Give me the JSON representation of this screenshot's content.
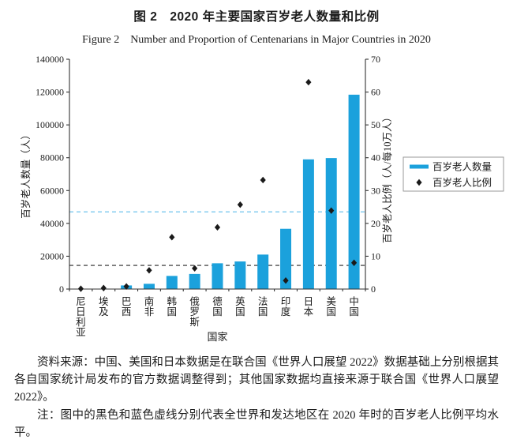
{
  "header": {
    "title_zh": "图 2　2020 年主要国家百岁老人数量和比例",
    "title_en": "Figure 2　Number and Proportion of Centenarians in Major Countries in 2020"
  },
  "chart_data": {
    "type": "bar",
    "title": "2020 年主要国家百岁老人数量和比例",
    "categories": [
      "尼日利亚",
      "埃及",
      "巴西",
      "南非",
      "韩国",
      "俄罗斯",
      "德国",
      "英国",
      "法国",
      "印度",
      "日本",
      "美国",
      "中国"
    ],
    "series": [
      {
        "name": "百岁老人数量",
        "type": "bar",
        "axis": "left",
        "color": "#1ba1dc",
        "values": [
          80,
          250,
          2200,
          3200,
          8000,
          9200,
          15700,
          16800,
          21000,
          36700,
          79000,
          79800,
          118400
        ]
      },
      {
        "name": "百岁老人比例",
        "type": "scatter",
        "marker": "diamond",
        "axis": "right",
        "color": "#1a1a1a",
        "values": [
          0.1,
          0.3,
          0.8,
          5.7,
          15.8,
          6.3,
          18.8,
          25.7,
          33.2,
          2.6,
          63,
          23.9,
          8
        ]
      }
    ],
    "reference_lines": [
      {
        "name": "全世界百岁老人比例平均水平",
        "axis": "right",
        "value": 7.2,
        "color": "#4d4d4d",
        "style": "dashed"
      },
      {
        "name": "发达地区百岁老人比例平均水平",
        "axis": "right",
        "value": 23.5,
        "color": "#7ac8ee",
        "style": "dashed"
      }
    ],
    "axes": {
      "left": {
        "label": "百岁老人数量（人）",
        "min": 0,
        "max": 140000,
        "step": 20000
      },
      "right": {
        "label": "百岁老人比例（人/每10万人）",
        "min": 0,
        "max": 70,
        "step": 10
      },
      "x": {
        "label": "国家"
      }
    },
    "legend": {
      "position": "right",
      "items": [
        "百岁老人数量",
        "百岁老人比例"
      ]
    }
  },
  "footer": {
    "source": "资料来源：中国、美国和日本数据是在联合国《世界人口展望 2022》数据基础上分别根据其各自国家统计局发布的官方数据调整得到；其他国家数据均直接来源于联合国《世界人口展望 2022》。",
    "note": "注：图中的黑色和蓝色虚线分别代表全世界和发达地区在 2020 年时的百岁老人比例平均水平。"
  }
}
